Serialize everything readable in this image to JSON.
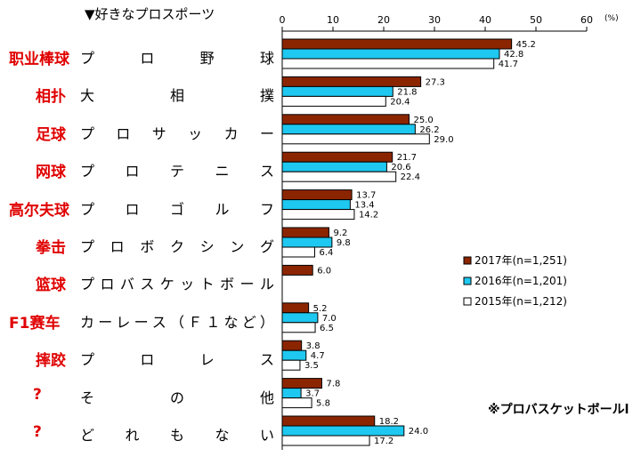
{
  "chart_data": {
    "type": "bar",
    "orientation": "horizontal",
    "title": "▼好きなプロスポーツ",
    "unit": "(%)",
    "xlim": [
      0,
      60
    ],
    "xticks": [
      0,
      10,
      20,
      30,
      40,
      50,
      60
    ],
    "categories": [
      {
        "cn": "职业棒球",
        "jp": [
          "プ",
          "ロ",
          "野",
          "球"
        ]
      },
      {
        "cn": "相扑",
        "jp": [
          "大",
          "相",
          "撲"
        ]
      },
      {
        "cn": "足球",
        "jp": [
          "プ",
          "ロ",
          "サ",
          "ッ",
          "カ",
          "ー"
        ]
      },
      {
        "cn": "网球",
        "jp": [
          "プ",
          "ロ",
          "テ",
          "ニ",
          "ス"
        ]
      },
      {
        "cn": "高尔夫球",
        "jp": [
          "プ",
          "ロ",
          "ゴ",
          "ル",
          "フ"
        ]
      },
      {
        "cn": "拳击",
        "jp": [
          "プ",
          "ロ",
          "ボ",
          "ク",
          "シ",
          "ン",
          "グ"
        ]
      },
      {
        "cn": "篮球",
        "jp": [
          "プ",
          "ロ",
          "バ",
          "ス",
          "ケ",
          "ッ",
          "ト",
          "ボ",
          "ー",
          "ル"
        ]
      },
      {
        "cn": "F1赛车",
        "jp": [
          "カ",
          "ー",
          "レ",
          "ー",
          "ス",
          "（",
          "Ｆ",
          "１",
          "な",
          "ど",
          "）"
        ]
      },
      {
        "cn": "摔跤",
        "jp": [
          "プ",
          "ロ",
          "レ",
          "ス"
        ]
      },
      {
        "cn": "?",
        "jp": [
          "そ",
          "の",
          "他"
        ]
      },
      {
        "cn": "?",
        "jp": [
          "ど",
          "れ",
          "も",
          "な",
          "い"
        ]
      }
    ],
    "series": [
      {
        "name": "2017年(n=1,251)",
        "color": "#8B2500",
        "values": [
          45.2,
          27.3,
          25.0,
          21.7,
          13.7,
          9.2,
          6.0,
          5.2,
          3.8,
          7.8,
          18.2
        ]
      },
      {
        "name": "2016年(n=1,201)",
        "color": "#1EC8F0",
        "values": [
          42.8,
          21.8,
          26.2,
          20.6,
          13.4,
          9.8,
          null,
          7.0,
          4.7,
          3.7,
          24.0
        ]
      },
      {
        "name": "2015年(n=1,212)",
        "color": "#ffffff",
        "values": [
          41.7,
          20.4,
          29.0,
          22.4,
          14.2,
          6.4,
          null,
          6.5,
          3.5,
          5.8,
          17.2
        ]
      }
    ],
    "legend": "right",
    "grid": false
  },
  "footnote": "※プロバスケットボールl"
}
